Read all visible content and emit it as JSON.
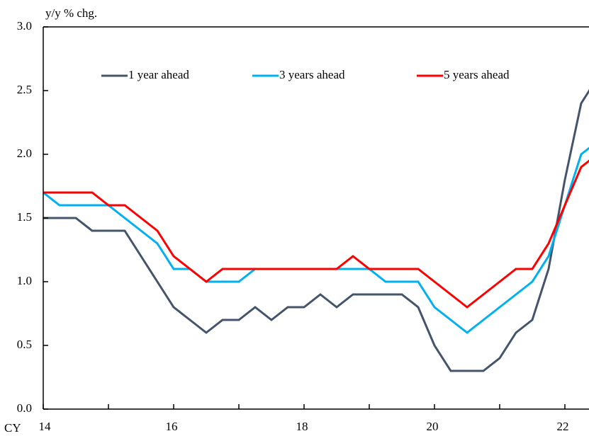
{
  "chart_data": {
    "type": "line",
    "y_unit_label": "y/y % chg.",
    "x_prefix_label": "CY",
    "x": [
      14,
      14.25,
      14.5,
      14.75,
      15,
      15.25,
      15.5,
      15.75,
      16,
      16.25,
      16.5,
      16.75,
      17,
      17.25,
      17.5,
      17.75,
      18,
      18.25,
      18.5,
      18.75,
      19,
      19.25,
      19.5,
      19.75,
      20,
      20.25,
      20.5,
      20.75,
      21,
      21.25,
      21.5,
      21.75,
      22,
      22.25,
      22.5
    ],
    "series": [
      {
        "name": "1 year ahead",
        "color": "#44546a",
        "values": [
          1.5,
          1.5,
          1.5,
          1.4,
          1.4,
          1.4,
          1.2,
          1.0,
          0.8,
          0.7,
          0.6,
          0.7,
          0.7,
          0.8,
          0.7,
          0.8,
          0.8,
          0.9,
          0.8,
          0.9,
          0.9,
          0.9,
          0.9,
          0.8,
          0.5,
          0.3,
          0.3,
          0.3,
          0.4,
          0.6,
          0.7,
          1.1,
          1.8,
          2.4,
          2.6
        ]
      },
      {
        "name": "3 years ahead",
        "color": "#00b0f0",
        "values": [
          1.7,
          1.6,
          1.6,
          1.6,
          1.6,
          1.5,
          1.4,
          1.3,
          1.1,
          1.1,
          1.0,
          1.0,
          1.0,
          1.1,
          1.1,
          1.1,
          1.1,
          1.1,
          1.1,
          1.1,
          1.1,
          1.0,
          1.0,
          1.0,
          0.8,
          0.7,
          0.6,
          0.7,
          0.8,
          0.9,
          1.0,
          1.2,
          1.6,
          2.0,
          2.1
        ]
      },
      {
        "name": "5 years ahead",
        "color": "#ff0000",
        "values": [
          1.7,
          1.7,
          1.7,
          1.7,
          1.6,
          1.6,
          1.5,
          1.4,
          1.2,
          1.1,
          1.0,
          1.1,
          1.1,
          1.1,
          1.1,
          1.1,
          1.1,
          1.1,
          1.1,
          1.2,
          1.1,
          1.1,
          1.1,
          1.1,
          1.0,
          0.9,
          0.8,
          0.9,
          1.0,
          1.1,
          1.1,
          1.3,
          1.6,
          1.9,
          2.0
        ]
      }
    ],
    "xlim": [
      14,
      22.37
    ],
    "xticks": [
      14,
      16,
      18,
      20,
      22
    ],
    "x_minor_ticks": [
      15,
      17,
      19,
      21
    ],
    "ylim": [
      0,
      3
    ],
    "yticks": [
      {
        "value": 0,
        "label": "0.0"
      },
      {
        "value": 0.5,
        "label": "0.5"
      },
      {
        "value": 1,
        "label": "1.0"
      },
      {
        "value": 1.5,
        "label": "1.5"
      },
      {
        "value": 2,
        "label": "2.0"
      },
      {
        "value": 2.5,
        "label": "2.5"
      },
      {
        "value": 3,
        "label": "3.0"
      }
    ],
    "grid": false,
    "legend": "top"
  }
}
